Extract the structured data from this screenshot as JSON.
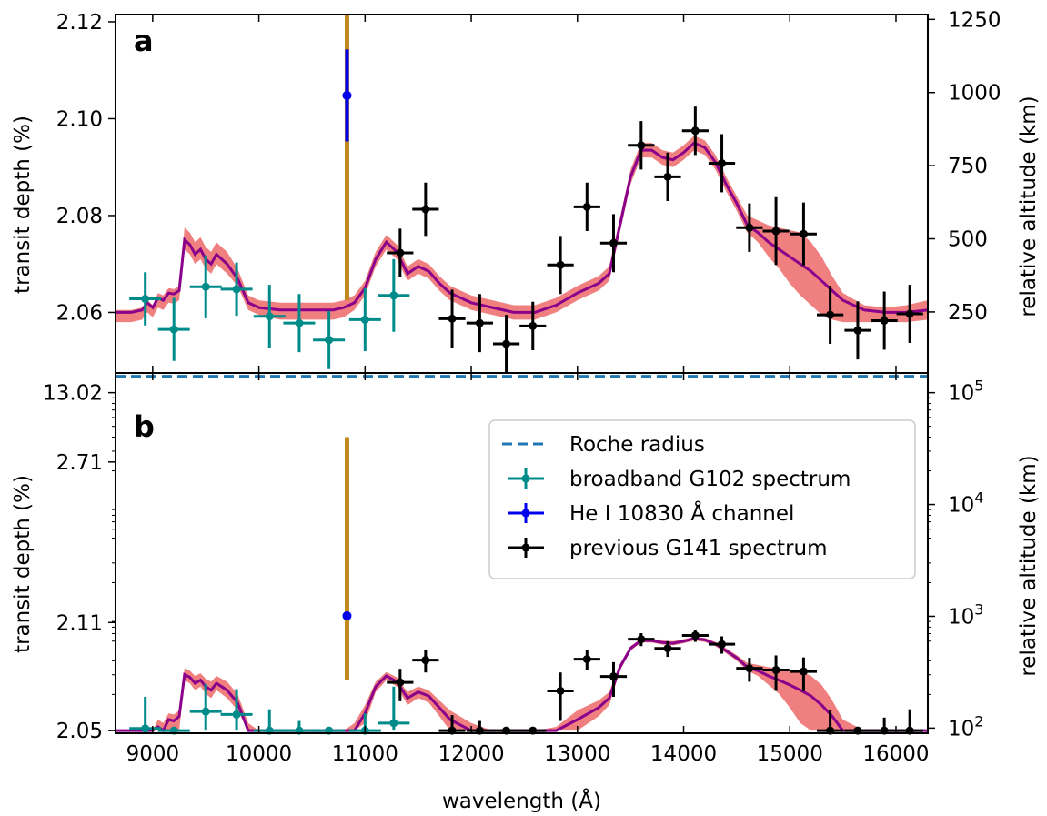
{
  "chart_data": [
    {
      "panel": "a",
      "type": "line",
      "xlabel": "wavelength (Å)",
      "ylabel": "transit depth (%)",
      "ylabel_right": "relative altitude (km)",
      "xlim": [
        8650,
        16300
      ],
      "ylim": [
        2.0475,
        2.1215
      ],
      "x_ticks": [
        9000,
        10000,
        11000,
        12000,
        13000,
        14000,
        15000,
        16000
      ],
      "x_tick_labels": [
        "9000",
        "10000",
        "11000",
        "12000",
        "13000",
        "14000",
        "15000",
        "16000"
      ],
      "y_ticks": [
        2.06,
        2.08,
        2.1,
        2.12
      ],
      "y_tick_labels": [
        "2.06",
        "2.08",
        "2.10",
        "2.12"
      ],
      "right_axis": {
        "ticks": [
          2.0601,
          2.0752,
          2.0903,
          2.1054,
          2.1205
        ],
        "labels": [
          "250",
          "500",
          "750",
          "1000",
          "1250"
        ]
      },
      "colors": {
        "model_line": "#8b008b",
        "model_band": "#f08080",
        "g102": "#008b8b",
        "he": "#0000ee",
        "g141": "#000000",
        "vline": "#c08a20"
      },
      "model": {
        "x": [
          8650,
          8800,
          8900,
          8950,
          9000,
          9050,
          9100,
          9150,
          9200,
          9250,
          9300,
          9350,
          9400,
          9450,
          9500,
          9550,
          9600,
          9650,
          9700,
          9800,
          9900,
          10000,
          10200,
          10400,
          10600,
          10700,
          10800,
          10900,
          11000,
          11100,
          11200,
          11300,
          11400,
          11500,
          11600,
          11700,
          11800,
          12000,
          12200,
          12400,
          12600,
          12800,
          13000,
          13200,
          13300,
          13400,
          13500,
          13600,
          13700,
          13800,
          13900,
          14000,
          14100,
          14200,
          14300,
          14400,
          14500,
          14600,
          14700,
          14800,
          14900,
          15000,
          15100,
          15200,
          15300,
          15400,
          15500,
          15700,
          15900,
          16100,
          16300
        ],
        "y": [
          2.06,
          2.06,
          2.0605,
          2.062,
          2.061,
          2.063,
          2.0625,
          2.064,
          2.0638,
          2.0645,
          2.075,
          2.074,
          2.072,
          2.073,
          2.071,
          2.07,
          2.072,
          2.071,
          2.07,
          2.067,
          2.062,
          2.061,
          2.0605,
          2.0605,
          2.0605,
          2.0605,
          2.061,
          2.062,
          2.065,
          2.071,
          2.0745,
          2.0725,
          2.068,
          2.0695,
          2.0685,
          2.066,
          2.064,
          2.062,
          2.061,
          2.06,
          2.06,
          2.0615,
          2.064,
          2.066,
          2.068,
          2.078,
          2.088,
          2.0935,
          2.0935,
          2.092,
          2.0915,
          2.093,
          2.095,
          2.094,
          2.091,
          2.0865,
          2.0825,
          2.078,
          2.0765,
          2.0745,
          2.073,
          2.0715,
          2.07,
          2.0685,
          2.0665,
          2.0645,
          2.0625,
          2.0605,
          2.06,
          2.06,
          2.0605
        ],
        "lo": [
          2.058,
          2.058,
          2.0585,
          2.06,
          2.059,
          2.061,
          2.0605,
          2.062,
          2.0618,
          2.0625,
          2.073,
          2.072,
          2.07,
          2.071,
          2.069,
          2.068,
          2.07,
          2.069,
          2.068,
          2.0655,
          2.0605,
          2.0595,
          2.0585,
          2.0585,
          2.0585,
          2.0585,
          2.059,
          2.0605,
          2.0635,
          2.0695,
          2.073,
          2.071,
          2.0665,
          2.068,
          2.067,
          2.0645,
          2.0625,
          2.0605,
          2.0595,
          2.0585,
          2.0585,
          2.06,
          2.0625,
          2.0645,
          2.0665,
          2.0765,
          2.0865,
          2.092,
          2.092,
          2.0905,
          2.09,
          2.0915,
          2.0935,
          2.0925,
          2.0895,
          2.085,
          2.081,
          2.0765,
          2.0745,
          2.0715,
          2.069,
          2.066,
          2.0635,
          2.0615,
          2.0595,
          2.0585,
          2.058,
          2.058,
          2.058,
          2.058,
          2.0585
        ],
        "hi": [
          2.0605,
          2.0605,
          2.061,
          2.0625,
          2.0615,
          2.064,
          2.0635,
          2.065,
          2.0648,
          2.0655,
          2.0775,
          2.0765,
          2.0745,
          2.0755,
          2.0735,
          2.0725,
          2.0745,
          2.0735,
          2.0725,
          2.069,
          2.0635,
          2.0625,
          2.062,
          2.062,
          2.062,
          2.062,
          2.0625,
          2.0635,
          2.0665,
          2.0725,
          2.076,
          2.074,
          2.0695,
          2.071,
          2.07,
          2.0675,
          2.0655,
          2.0635,
          2.0625,
          2.0615,
          2.0615,
          2.063,
          2.0655,
          2.0675,
          2.0695,
          2.0795,
          2.0895,
          2.095,
          2.095,
          2.0935,
          2.093,
          2.0945,
          2.0965,
          2.0955,
          2.0925,
          2.088,
          2.084,
          2.08,
          2.079,
          2.078,
          2.0775,
          2.077,
          2.0765,
          2.0745,
          2.0715,
          2.0675,
          2.064,
          2.0615,
          2.061,
          2.0615,
          2.0625
        ]
      },
      "g102_points": [
        {
          "x": 8930,
          "y": 2.0628,
          "xerr": 150,
          "yerr": 0.0055
        },
        {
          "x": 9200,
          "y": 2.0565,
          "xerr": 150,
          "yerr": 0.0065
        },
        {
          "x": 9500,
          "y": 2.0653,
          "xerr": 150,
          "yerr": 0.0065
        },
        {
          "x": 9790,
          "y": 2.0648,
          "xerr": 150,
          "yerr": 0.0055
        },
        {
          "x": 10100,
          "y": 2.0592,
          "xerr": 150,
          "yerr": 0.0065
        },
        {
          "x": 10380,
          "y": 2.0578,
          "xerr": 150,
          "yerr": 0.006
        },
        {
          "x": 10660,
          "y": 2.0543,
          "xerr": 150,
          "yerr": 0.006
        },
        {
          "x": 11000,
          "y": 2.0585,
          "xerr": 150,
          "yerr": 0.0065
        },
        {
          "x": 11270,
          "y": 2.0635,
          "xerr": 150,
          "yerr": 0.0075
        }
      ],
      "he_point": {
        "x": 10830,
        "y": 2.1048,
        "xerr": 0,
        "yerr": 0.0095
      },
      "he_vline": {
        "x": 10830,
        "y_from": 2.0625,
        "y_to": 2.1215
      },
      "g141_points": [
        {
          "x": 11330,
          "y": 2.0723,
          "xerr": 125,
          "yerr": 0.005
        },
        {
          "x": 11570,
          "y": 2.0813,
          "xerr": 125,
          "yerr": 0.0055
        },
        {
          "x": 11820,
          "y": 2.0587,
          "xerr": 125,
          "yerr": 0.006
        },
        {
          "x": 12080,
          "y": 2.0578,
          "xerr": 125,
          "yerr": 0.006
        },
        {
          "x": 12330,
          "y": 2.0535,
          "xerr": 125,
          "yerr": 0.006
        },
        {
          "x": 12580,
          "y": 2.0572,
          "xerr": 125,
          "yerr": 0.005
        },
        {
          "x": 12840,
          "y": 2.0698,
          "xerr": 125,
          "yerr": 0.006
        },
        {
          "x": 13090,
          "y": 2.0818,
          "xerr": 125,
          "yerr": 0.005
        },
        {
          "x": 13340,
          "y": 2.0743,
          "xerr": 125,
          "yerr": 0.006
        },
        {
          "x": 13600,
          "y": 2.0945,
          "xerr": 125,
          "yerr": 0.005
        },
        {
          "x": 13850,
          "y": 2.088,
          "xerr": 125,
          "yerr": 0.005
        },
        {
          "x": 14110,
          "y": 2.0975,
          "xerr": 125,
          "yerr": 0.005
        },
        {
          "x": 14360,
          "y": 2.0908,
          "xerr": 125,
          "yerr": 0.006
        },
        {
          "x": 14620,
          "y": 2.0775,
          "xerr": 125,
          "yerr": 0.005
        },
        {
          "x": 14870,
          "y": 2.0768,
          "xerr": 125,
          "yerr": 0.007
        },
        {
          "x": 15130,
          "y": 2.0762,
          "xerr": 125,
          "yerr": 0.0065
        },
        {
          "x": 15380,
          "y": 2.0595,
          "xerr": 125,
          "yerr": 0.006
        },
        {
          "x": 15640,
          "y": 2.0563,
          "xerr": 125,
          "yerr": 0.006
        },
        {
          "x": 15890,
          "y": 2.0583,
          "xerr": 125,
          "yerr": 0.006
        },
        {
          "x": 16130,
          "y": 2.0597,
          "xerr": 125,
          "yerr": 0.006
        }
      ]
    },
    {
      "panel": "b",
      "type": "line",
      "xlabel": "wavelength (Å)",
      "ylabel": "transit depth (%)",
      "ylabel_right": "relative altitude (km)",
      "xlim": [
        8650,
        16300
      ],
      "y_scale": "log-altitude",
      "y_ticks": [
        2.05,
        2.11,
        2.71,
        13.02
      ],
      "y_tick_labels": [
        "2.05",
        "2.11",
        "2.71",
        "13.02"
      ],
      "right_axis": {
        "ticks": [
          100,
          1000,
          10000,
          100000
        ],
        "labels": [
          "10^2",
          "10^3",
          "10^4",
          "10^5"
        ],
        "range": [
          90,
          150000
        ]
      },
      "roche_radius_altitude": 140000,
      "he_vline": {
        "x": 10830,
        "y_from": 270,
        "y_to": 40000
      },
      "he_point_altitude": 1010
    }
  ],
  "legend": {
    "placement": "upper-right",
    "entries": [
      {
        "label": "Roche radius",
        "style": "dashed",
        "color": "#1f77b4"
      },
      {
        "label": "broadband G102 spectrum",
        "style": "errorbar",
        "color": "#008b8b"
      },
      {
        "label": "He I 10830 Å channel",
        "style": "errorbar",
        "color": "#0000ee"
      },
      {
        "label": "previous G141 spectrum",
        "style": "errorbar",
        "color": "#000000"
      }
    ]
  }
}
